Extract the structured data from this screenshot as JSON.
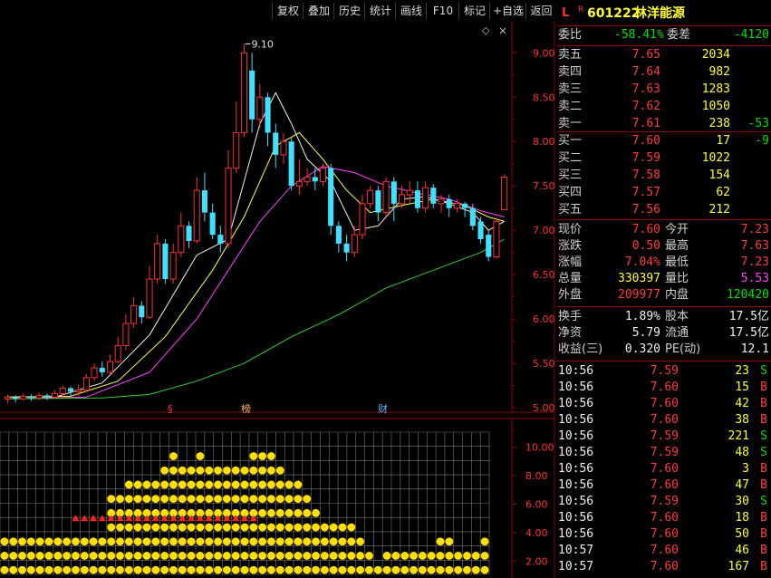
{
  "toolbar": {
    "buttons": [
      "复权",
      "叠加",
      "历史",
      "统计",
      "画线",
      "F10",
      "标记",
      "+自选",
      "返回"
    ]
  },
  "chart": {
    "price_ticks": [
      "9.00",
      "8.50",
      "8.00",
      "7.50",
      "7.00",
      "6.50",
      "6.00",
      "5.50",
      "5.00"
    ],
    "high_label": "9.10",
    "event_marks": [
      "§",
      "榜",
      "财"
    ],
    "lower_ticks": [
      "10.00",
      "8.00",
      "6.00",
      "4.00",
      "2.00"
    ],
    "diamond": "◇",
    "dot": "●",
    "colors": {
      "up": "#ff3030",
      "down": "#40e0ff",
      "ma5": "#f0f0f0",
      "ma10": "#ffff40",
      "ma20": "#ff40ff",
      "ma60": "#30d030",
      "grid": "#8b0000",
      "dot": "#ffe000"
    }
  },
  "chart_data": {
    "type": "candlestick",
    "ylim": [
      4.95,
      9.35
    ],
    "candles": [
      {
        "o": 5.1,
        "c": 5.12,
        "h": 5.15,
        "l": 5.05
      },
      {
        "o": 5.12,
        "c": 5.1,
        "h": 5.14,
        "l": 5.06
      },
      {
        "o": 5.1,
        "c": 5.13,
        "h": 5.16,
        "l": 5.08
      },
      {
        "o": 5.13,
        "c": 5.11,
        "h": 5.15,
        "l": 5.08
      },
      {
        "o": 5.11,
        "c": 5.14,
        "h": 5.17,
        "l": 5.09
      },
      {
        "o": 5.14,
        "c": 5.12,
        "h": 5.16,
        "l": 5.09
      },
      {
        "o": 5.12,
        "c": 5.16,
        "h": 5.2,
        "l": 5.1
      },
      {
        "o": 5.16,
        "c": 5.22,
        "h": 5.25,
        "l": 5.12
      },
      {
        "o": 5.22,
        "c": 5.18,
        "h": 5.24,
        "l": 5.13
      },
      {
        "o": 5.18,
        "c": 5.2,
        "h": 5.26,
        "l": 5.13
      },
      {
        "o": 5.2,
        "c": 5.34,
        "h": 5.38,
        "l": 5.18
      },
      {
        "o": 5.34,
        "c": 5.45,
        "h": 5.5,
        "l": 5.3
      },
      {
        "o": 5.45,
        "c": 5.4,
        "h": 5.52,
        "l": 5.35
      },
      {
        "o": 5.4,
        "c": 5.52,
        "h": 5.6,
        "l": 5.38
      },
      {
        "o": 5.52,
        "c": 5.7,
        "h": 5.8,
        "l": 5.5
      },
      {
        "o": 5.7,
        "c": 5.95,
        "h": 6.05,
        "l": 5.65
      },
      {
        "o": 5.95,
        "c": 6.15,
        "h": 6.25,
        "l": 5.9
      },
      {
        "o": 6.15,
        "c": 6.02,
        "h": 6.2,
        "l": 5.95
      },
      {
        "o": 6.02,
        "c": 6.45,
        "h": 6.6,
        "l": 6.0
      },
      {
        "o": 6.45,
        "c": 6.85,
        "h": 6.95,
        "l": 6.4
      },
      {
        "o": 6.85,
        "c": 6.45,
        "h": 6.9,
        "l": 6.4
      },
      {
        "o": 6.45,
        "c": 6.75,
        "h": 6.85,
        "l": 6.4
      },
      {
        "o": 6.75,
        "c": 7.05,
        "h": 7.2,
        "l": 6.7
      },
      {
        "o": 7.05,
        "c": 6.88,
        "h": 7.1,
        "l": 6.8
      },
      {
        "o": 6.88,
        "c": 7.45,
        "h": 7.6,
        "l": 6.85
      },
      {
        "o": 7.45,
        "c": 7.2,
        "h": 7.65,
        "l": 7.1
      },
      {
        "o": 7.2,
        "c": 6.95,
        "h": 7.3,
        "l": 6.9
      },
      {
        "o": 6.95,
        "c": 6.85,
        "h": 7.05,
        "l": 6.75
      },
      {
        "o": 6.85,
        "c": 7.7,
        "h": 7.9,
        "l": 6.8
      },
      {
        "o": 7.7,
        "c": 8.1,
        "h": 8.45,
        "l": 7.65
      },
      {
        "o": 8.1,
        "c": 9.0,
        "h": 9.1,
        "l": 8.05
      },
      {
        "o": 8.8,
        "c": 8.25,
        "h": 9.0,
        "l": 8.1
      },
      {
        "o": 8.25,
        "c": 8.5,
        "h": 8.65,
        "l": 8.15
      },
      {
        "o": 8.5,
        "c": 8.1,
        "h": 8.55,
        "l": 7.95
      },
      {
        "o": 8.1,
        "c": 7.85,
        "h": 8.2,
        "l": 7.7
      },
      {
        "o": 7.85,
        "c": 8.0,
        "h": 8.1,
        "l": 7.75
      },
      {
        "o": 8.0,
        "c": 7.5,
        "h": 8.05,
        "l": 7.45
      },
      {
        "o": 7.5,
        "c": 7.55,
        "h": 7.8,
        "l": 7.4
      },
      {
        "o": 7.55,
        "c": 7.6,
        "h": 7.7,
        "l": 7.5
      },
      {
        "o": 7.6,
        "c": 7.55,
        "h": 7.7,
        "l": 7.45
      },
      {
        "o": 7.55,
        "c": 7.7,
        "h": 7.75,
        "l": 7.5
      },
      {
        "o": 7.7,
        "c": 7.05,
        "h": 7.75,
        "l": 6.95
      },
      {
        "o": 7.05,
        "c": 6.85,
        "h": 7.1,
        "l": 6.75
      },
      {
        "o": 6.85,
        "c": 6.75,
        "h": 6.95,
        "l": 6.65
      },
      {
        "o": 6.75,
        "c": 6.95,
        "h": 7.05,
        "l": 6.7
      },
      {
        "o": 6.95,
        "c": 7.3,
        "h": 7.4,
        "l": 6.9
      },
      {
        "o": 7.3,
        "c": 7.45,
        "h": 7.5,
        "l": 7.25
      },
      {
        "o": 7.45,
        "c": 7.2,
        "h": 7.5,
        "l": 7.1
      },
      {
        "o": 7.2,
        "c": 7.55,
        "h": 7.6,
        "l": 7.15
      },
      {
        "o": 7.55,
        "c": 7.3,
        "h": 7.6,
        "l": 7.1
      },
      {
        "o": 7.3,
        "c": 7.4,
        "h": 7.5,
        "l": 7.25
      },
      {
        "o": 7.4,
        "c": 7.45,
        "h": 7.55,
        "l": 7.3
      },
      {
        "o": 7.45,
        "c": 7.25,
        "h": 7.55,
        "l": 7.2
      },
      {
        "o": 7.25,
        "c": 7.48,
        "h": 7.55,
        "l": 7.2
      },
      {
        "o": 7.48,
        "c": 7.3,
        "h": 7.52,
        "l": 7.25
      },
      {
        "o": 7.3,
        "c": 7.35,
        "h": 7.4,
        "l": 7.2
      },
      {
        "o": 7.35,
        "c": 7.25,
        "h": 7.4,
        "l": 7.15
      },
      {
        "o": 7.25,
        "c": 7.3,
        "h": 7.35,
        "l": 7.2
      },
      {
        "o": 7.3,
        "c": 7.25,
        "h": 7.32,
        "l": 7.15
      },
      {
        "o": 7.25,
        "c": 7.05,
        "h": 7.3,
        "l": 7.0
      },
      {
        "o": 7.1,
        "c": 6.9,
        "h": 7.15,
        "l": 6.85
      },
      {
        "o": 6.95,
        "c": 6.7,
        "h": 7.0,
        "l": 6.65
      },
      {
        "o": 6.7,
        "c": 7.1,
        "h": 7.15,
        "l": 6.68
      },
      {
        "o": 7.23,
        "c": 7.6,
        "h": 7.63,
        "l": 7.23
      }
    ],
    "ma_series": [
      {
        "key": "ma5",
        "values": [
          [
            0,
            5.12
          ],
          [
            6,
            5.12
          ],
          [
            12,
            5.28
          ],
          [
            18,
            5.82
          ],
          [
            24,
            6.72
          ],
          [
            28,
            6.9
          ],
          [
            30,
            7.55
          ],
          [
            32,
            8.2
          ],
          [
            34,
            8.55
          ],
          [
            36,
            8.2
          ],
          [
            38,
            7.8
          ],
          [
            41,
            7.55
          ],
          [
            44,
            7.0
          ],
          [
            47,
            7.05
          ],
          [
            50,
            7.35
          ],
          [
            53,
            7.38
          ],
          [
            56,
            7.3
          ],
          [
            59,
            7.2
          ],
          [
            61,
            7.0
          ],
          [
            63,
            7.1
          ]
        ]
      },
      {
        "key": "ma10",
        "values": [
          [
            0,
            5.12
          ],
          [
            8,
            5.13
          ],
          [
            14,
            5.3
          ],
          [
            20,
            5.8
          ],
          [
            26,
            6.55
          ],
          [
            30,
            7.15
          ],
          [
            34,
            7.95
          ],
          [
            37,
            8.1
          ],
          [
            40,
            7.8
          ],
          [
            43,
            7.45
          ],
          [
            46,
            7.2
          ],
          [
            50,
            7.28
          ],
          [
            54,
            7.35
          ],
          [
            58,
            7.28
          ],
          [
            61,
            7.15
          ],
          [
            63,
            7.1
          ]
        ]
      },
      {
        "key": "ma20",
        "values": [
          [
            0,
            5.1
          ],
          [
            10,
            5.12
          ],
          [
            18,
            5.4
          ],
          [
            24,
            6.0
          ],
          [
            28,
            6.55
          ],
          [
            32,
            7.1
          ],
          [
            36,
            7.5
          ],
          [
            40,
            7.72
          ],
          [
            44,
            7.65
          ],
          [
            48,
            7.5
          ],
          [
            52,
            7.42
          ],
          [
            56,
            7.35
          ],
          [
            60,
            7.22
          ],
          [
            63,
            7.15
          ]
        ]
      },
      {
        "key": "ma60",
        "values": [
          [
            0,
            5.1
          ],
          [
            12,
            5.11
          ],
          [
            18,
            5.15
          ],
          [
            24,
            5.3
          ],
          [
            30,
            5.5
          ],
          [
            36,
            5.8
          ],
          [
            42,
            6.05
          ],
          [
            48,
            6.35
          ],
          [
            54,
            6.55
          ],
          [
            60,
            6.75
          ],
          [
            63,
            6.9
          ]
        ]
      }
    ],
    "lower_panel": {
      "ylim": [
        1,
        11
      ],
      "dot_columns": [
        [
          1,
          2,
          3
        ],
        [
          1,
          2,
          3
        ],
        [
          1,
          2,
          3
        ],
        [
          1,
          2,
          3
        ],
        [
          1,
          2,
          3
        ],
        [
          1,
          2,
          3
        ],
        [
          1,
          2,
          3
        ],
        [
          1,
          2,
          3
        ],
        [
          1,
          2,
          3
        ],
        [
          1,
          2,
          3
        ],
        [
          1,
          2,
          3
        ],
        [
          1,
          2,
          3
        ],
        [
          1,
          2,
          3,
          4,
          5,
          6
        ],
        [
          1,
          2,
          3,
          4,
          5,
          6
        ],
        [
          1,
          2,
          3,
          4,
          5,
          6,
          7
        ],
        [
          1,
          2,
          3,
          4,
          5,
          6,
          7
        ],
        [
          1,
          2,
          3,
          4,
          5,
          6,
          7
        ],
        [
          1,
          2,
          3,
          4,
          5,
          6,
          7
        ],
        [
          1,
          2,
          3,
          4,
          5,
          6,
          7,
          8
        ],
        [
          1,
          2,
          3,
          4,
          5,
          6,
          7,
          8,
          9
        ],
        [
          1,
          2,
          3,
          4,
          5,
          6,
          7,
          8
        ],
        [
          1,
          2,
          3,
          4,
          5,
          6,
          7,
          8
        ],
        [
          1,
          2,
          3,
          4,
          5,
          6,
          7,
          8,
          9
        ],
        [
          1,
          2,
          3,
          4,
          5,
          6,
          7,
          8
        ],
        [
          1,
          2,
          3,
          4,
          5,
          6,
          7,
          8
        ],
        [
          1,
          2,
          3,
          4,
          5,
          6,
          7,
          8
        ],
        [
          1,
          2,
          3,
          4,
          5,
          6,
          7,
          8
        ],
        [
          1,
          2,
          3,
          4,
          5,
          6,
          7,
          8
        ],
        [
          1,
          2,
          3,
          4,
          5,
          6,
          7,
          8,
          9
        ],
        [
          1,
          2,
          3,
          4,
          5,
          6,
          7,
          8,
          9
        ],
        [
          1,
          2,
          3,
          4,
          5,
          6,
          7,
          8,
          9
        ],
        [
          1,
          2,
          3,
          4,
          5,
          6,
          7,
          8
        ],
        [
          1,
          2,
          3,
          4,
          5,
          6,
          7
        ],
        [
          1,
          2,
          3,
          4,
          5,
          6,
          7
        ],
        [
          1,
          2,
          3,
          4,
          5,
          6
        ],
        [
          1,
          2,
          3,
          4,
          5
        ],
        [
          1,
          2,
          3,
          4
        ],
        [
          1,
          2,
          3,
          4
        ],
        [
          1,
          2,
          3,
          4
        ],
        [
          1,
          2,
          3,
          4
        ],
        [
          1,
          2,
          3
        ],
        [
          1,
          2
        ],
        [
          1
        ],
        [
          1,
          2
        ],
        [
          1,
          2
        ],
        [
          1,
          2
        ],
        [
          1,
          2
        ],
        [
          1,
          2
        ],
        [
          1,
          2
        ],
        [
          1,
          2,
          3
        ],
        [
          1,
          2,
          3
        ],
        [
          1,
          2
        ],
        [
          1,
          2
        ],
        [
          1,
          2
        ],
        [
          1,
          2,
          3
        ]
      ],
      "red_row": {
        "level": 5,
        "from": 8,
        "to": 28
      }
    }
  },
  "panel": {
    "market_flag": "L",
    "r_flag": "R",
    "code": "601222",
    "name": "林洋能源",
    "weibi_label": "委比",
    "weibi": "-58.41%",
    "weicha_label": "委差",
    "weicha": "-4120",
    "asks": [
      {
        "label": "卖五",
        "price": "7.65",
        "vol": "2034",
        "chg": ""
      },
      {
        "label": "卖四",
        "price": "7.64",
        "vol": "982",
        "chg": ""
      },
      {
        "label": "卖三",
        "price": "7.63",
        "vol": "1283",
        "chg": ""
      },
      {
        "label": "卖二",
        "price": "7.62",
        "vol": "1050",
        "chg": ""
      },
      {
        "label": "卖一",
        "price": "7.61",
        "vol": "238",
        "chg": "-53"
      }
    ],
    "bids": [
      {
        "label": "买一",
        "price": "7.60",
        "vol": "17",
        "chg": "-9"
      },
      {
        "label": "买二",
        "price": "7.59",
        "vol": "1022",
        "chg": ""
      },
      {
        "label": "买三",
        "price": "7.58",
        "vol": "154",
        "chg": ""
      },
      {
        "label": "买四",
        "price": "7.57",
        "vol": "62",
        "chg": ""
      },
      {
        "label": "买五",
        "price": "7.56",
        "vol": "212",
        "chg": ""
      }
    ],
    "quote": {
      "xianjia_label": "现价",
      "xianjia": "7.60",
      "jinkai_label": "今开",
      "jinkai": "7.23",
      "zhangdie_label": "涨跌",
      "zhangdie": "0.50",
      "zuigao_label": "最高",
      "zuigao": "7.63",
      "zhangfu_label": "涨幅",
      "zhangfu": "7.04%",
      "zuidi_label": "最低",
      "zuidi": "7.23",
      "zongliang_label": "总量",
      "zongliang": "330397",
      "liangbi_label": "量比",
      "liangbi": "5.53",
      "waipan_label": "外盘",
      "waipan": "209977",
      "neipan_label": "内盘",
      "neipan": "120420"
    },
    "fund": {
      "huanshou_label": "换手",
      "huanshou": "1.89%",
      "guben_label": "股本",
      "guben": "17.5亿",
      "jingzi_label": "净资",
      "jingzi": "5.79",
      "liutong_label": "流通",
      "liutong": "17.5亿",
      "shouyi_label": "收益(三)",
      "shouyi": "0.320",
      "pe_label": "PE(动)",
      "pe": "12.1"
    },
    "ticks": [
      {
        "time": "10:56",
        "price": "7.59",
        "vol": "23",
        "side": "S"
      },
      {
        "time": "10:56",
        "price": "7.60",
        "vol": "15",
        "side": "B"
      },
      {
        "time": "10:56",
        "price": "7.60",
        "vol": "42",
        "side": "B"
      },
      {
        "time": "10:56",
        "price": "7.60",
        "vol": "38",
        "side": "B"
      },
      {
        "time": "10:56",
        "price": "7.59",
        "vol": "221",
        "side": "S"
      },
      {
        "time": "10:56",
        "price": "7.59",
        "vol": "48",
        "side": "S"
      },
      {
        "time": "10:56",
        "price": "7.60",
        "vol": "3",
        "side": "B"
      },
      {
        "time": "10:56",
        "price": "7.60",
        "vol": "47",
        "side": "B"
      },
      {
        "time": "10:56",
        "price": "7.59",
        "vol": "30",
        "side": "S"
      },
      {
        "time": "10:56",
        "price": "7.60",
        "vol": "18",
        "side": "B"
      },
      {
        "time": "10:56",
        "price": "7.60",
        "vol": "50",
        "side": "B"
      },
      {
        "time": "10:57",
        "price": "7.60",
        "vol": "46",
        "side": "B"
      },
      {
        "time": "10:57",
        "price": "7.60",
        "vol": "167",
        "side": "B"
      }
    ]
  }
}
